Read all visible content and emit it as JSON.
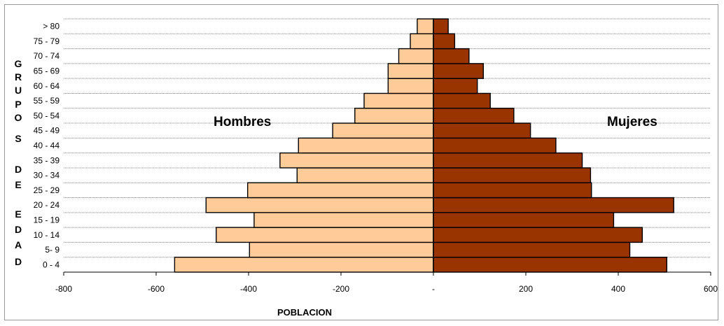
{
  "chart_data": {
    "type": "bar",
    "orientation": "horizontal",
    "stacked_divergent": true,
    "categories": [
      "0 - 4",
      "5- 9",
      "10 - 14",
      "15 - 19",
      "20 - 24",
      "25 - 29",
      "30 - 34",
      "35 - 39",
      "40 - 44",
      "45 - 49",
      "50 - 54",
      "55 - 59",
      "60 - 64",
      "65 - 69",
      "70 - 74",
      "75 - 79",
      "> 80"
    ],
    "series": [
      {
        "name": "Hombres",
        "color": "#FFCC99",
        "values": [
          -560,
          -398,
          -470,
          -388,
          -492,
          -402,
          -295,
          -332,
          -292,
          -218,
          -170,
          -150,
          -98,
          -98,
          -75,
          -50,
          -35
        ]
      },
      {
        "name": "Mujeres",
        "color": "#993300",
        "values": [
          505,
          425,
          452,
          390,
          520,
          342,
          340,
          322,
          265,
          210,
          174,
          123,
          95,
          108,
          77,
          46,
          32
        ]
      }
    ],
    "xlabel": "POBLACION",
    "ylabel_letters": [
      "G",
      "R",
      "U",
      "P",
      "O",
      "S",
      "D",
      "E",
      "E",
      "D",
      "A",
      "D"
    ],
    "xlim": [
      -800,
      600
    ],
    "xticks": [
      -800,
      -600,
      -400,
      -200,
      0,
      200,
      400,
      600
    ],
    "xtick_labels": [
      "-800",
      "-600",
      "-400",
      "-200",
      "-",
      "200",
      "400",
      "600"
    ],
    "grid": "horizontal-dotted",
    "legend": "none"
  }
}
